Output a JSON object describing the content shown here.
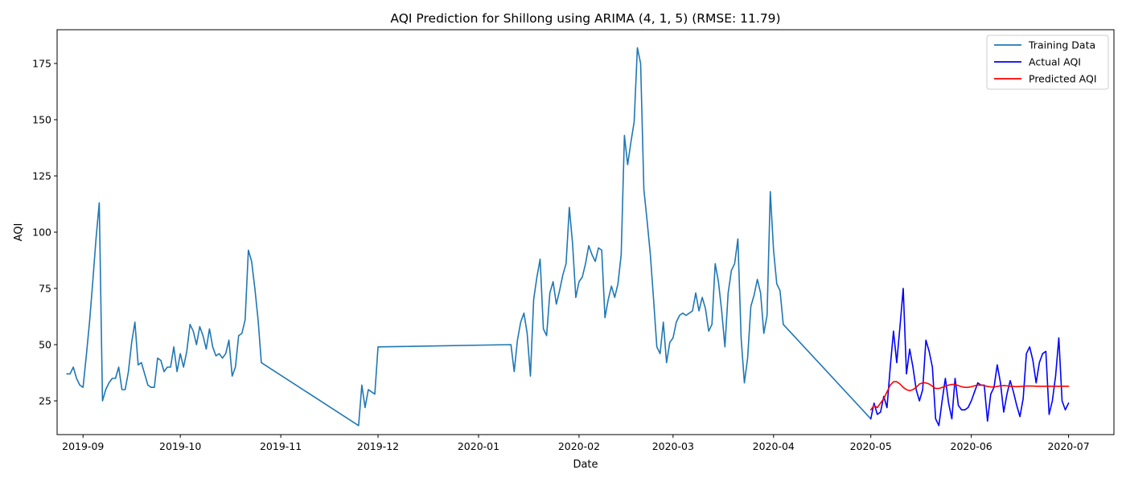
{
  "chart_data": {
    "type": "line",
    "title": "AQI Prediction for Shillong using ARIMA (4, 1, 5) (RMSE: 11.79)",
    "xlabel": "Date",
    "ylabel": "AQI",
    "xlim": [
      "2019-08-24",
      "2020-07-15"
    ],
    "ylim": [
      10,
      190
    ],
    "x_ticks": [
      "2019-09",
      "2019-10",
      "2019-11",
      "2019-12",
      "2020-01",
      "2020-02",
      "2020-03",
      "2020-04",
      "2020-05",
      "2020-06",
      "2020-07"
    ],
    "y_ticks": [
      25,
      50,
      75,
      100,
      125,
      150,
      175
    ],
    "legend_position": "top-right",
    "grid": false,
    "series": [
      {
        "name": "Training Data",
        "color": "#1f77b4",
        "points": [
          [
            "2019-08-27",
            37
          ],
          [
            "2019-08-28",
            37
          ],
          [
            "2019-08-29",
            40
          ],
          [
            "2019-08-30",
            35
          ],
          [
            "2019-08-31",
            32
          ],
          [
            "2019-09-01",
            31
          ],
          [
            "2019-09-02",
            45
          ],
          [
            "2019-09-03",
            60
          ],
          [
            "2019-09-04",
            78
          ],
          [
            "2019-09-05",
            97
          ],
          [
            "2019-09-06",
            113
          ],
          [
            "2019-09-07",
            25
          ],
          [
            "2019-09-08",
            30
          ],
          [
            "2019-09-09",
            33
          ],
          [
            "2019-09-10",
            35
          ],
          [
            "2019-09-11",
            35
          ],
          [
            "2019-09-12",
            40
          ],
          [
            "2019-09-13",
            30
          ],
          [
            "2019-09-14",
            30
          ],
          [
            "2019-09-15",
            38
          ],
          [
            "2019-09-16",
            51
          ],
          [
            "2019-09-17",
            60
          ],
          [
            "2019-09-18",
            41
          ],
          [
            "2019-09-19",
            42
          ],
          [
            "2019-09-20",
            37
          ],
          [
            "2019-09-21",
            32
          ],
          [
            "2019-09-22",
            31
          ],
          [
            "2019-09-23",
            31
          ],
          [
            "2019-09-24",
            44
          ],
          [
            "2019-09-25",
            43
          ],
          [
            "2019-09-26",
            38
          ],
          [
            "2019-09-27",
            40
          ],
          [
            "2019-09-28",
            40
          ],
          [
            "2019-09-29",
            49
          ],
          [
            "2019-09-30",
            38
          ],
          [
            "2019-10-01",
            46
          ],
          [
            "2019-10-02",
            40
          ],
          [
            "2019-10-03",
            47
          ],
          [
            "2019-10-04",
            59
          ],
          [
            "2019-10-05",
            56
          ],
          [
            "2019-10-06",
            50
          ],
          [
            "2019-10-07",
            58
          ],
          [
            "2019-10-08",
            54
          ],
          [
            "2019-10-09",
            48
          ],
          [
            "2019-10-10",
            57
          ],
          [
            "2019-10-11",
            49
          ],
          [
            "2019-10-12",
            45
          ],
          [
            "2019-10-13",
            46
          ],
          [
            "2019-10-14",
            44
          ],
          [
            "2019-10-15",
            46
          ],
          [
            "2019-10-16",
            52
          ],
          [
            "2019-10-17",
            36
          ],
          [
            "2019-10-18",
            40
          ],
          [
            "2019-10-19",
            54
          ],
          [
            "2019-10-20",
            55
          ],
          [
            "2019-10-21",
            61
          ],
          [
            "2019-10-22",
            92
          ],
          [
            "2019-10-23",
            87
          ],
          [
            "2019-10-24",
            75
          ],
          [
            "2019-10-25",
            61
          ],
          [
            "2019-10-26",
            42
          ],
          [
            "2019-11-25",
            14
          ],
          [
            "2019-11-26",
            32
          ],
          [
            "2019-11-27",
            22
          ],
          [
            "2019-11-28",
            30
          ],
          [
            "2019-11-29",
            29
          ],
          [
            "2019-11-30",
            28
          ],
          [
            "2019-12-01",
            49
          ],
          [
            "2020-01-11",
            50
          ],
          [
            "2020-01-12",
            38
          ],
          [
            "2020-01-13",
            52
          ],
          [
            "2020-01-14",
            60
          ],
          [
            "2020-01-15",
            64
          ],
          [
            "2020-01-16",
            55
          ],
          [
            "2020-01-17",
            36
          ],
          [
            "2020-01-18",
            70
          ],
          [
            "2020-01-19",
            80
          ],
          [
            "2020-01-20",
            88
          ],
          [
            "2020-01-21",
            57
          ],
          [
            "2020-01-22",
            54
          ],
          [
            "2020-01-23",
            73
          ],
          [
            "2020-01-24",
            78
          ],
          [
            "2020-01-25",
            68
          ],
          [
            "2020-01-26",
            74
          ],
          [
            "2020-01-27",
            81
          ],
          [
            "2020-01-28",
            86
          ],
          [
            "2020-01-29",
            111
          ],
          [
            "2020-01-30",
            95
          ],
          [
            "2020-01-31",
            71
          ],
          [
            "2020-02-01",
            78
          ],
          [
            "2020-02-02",
            80
          ],
          [
            "2020-02-03",
            86
          ],
          [
            "2020-02-04",
            94
          ],
          [
            "2020-02-05",
            90
          ],
          [
            "2020-02-06",
            87
          ],
          [
            "2020-02-07",
            93
          ],
          [
            "2020-02-08",
            92
          ],
          [
            "2020-02-09",
            62
          ],
          [
            "2020-02-10",
            70
          ],
          [
            "2020-02-11",
            76
          ],
          [
            "2020-02-12",
            71
          ],
          [
            "2020-02-13",
            77
          ],
          [
            "2020-02-14",
            90
          ],
          [
            "2020-02-15",
            143
          ],
          [
            "2020-02-16",
            130
          ],
          [
            "2020-02-17",
            140
          ],
          [
            "2020-02-18",
            149
          ],
          [
            "2020-02-19",
            182
          ],
          [
            "2020-02-20",
            175
          ],
          [
            "2020-02-21",
            119
          ],
          [
            "2020-02-22",
            105
          ],
          [
            "2020-02-23",
            90
          ],
          [
            "2020-02-24",
            70
          ],
          [
            "2020-02-25",
            49
          ],
          [
            "2020-02-26",
            46
          ],
          [
            "2020-02-27",
            60
          ],
          [
            "2020-02-28",
            42
          ],
          [
            "2020-02-29",
            51
          ],
          [
            "2020-03-01",
            53
          ],
          [
            "2020-03-02",
            60
          ],
          [
            "2020-03-03",
            63
          ],
          [
            "2020-03-04",
            64
          ],
          [
            "2020-03-05",
            63
          ],
          [
            "2020-03-06",
            64
          ],
          [
            "2020-03-07",
            65
          ],
          [
            "2020-03-08",
            73
          ],
          [
            "2020-03-09",
            65
          ],
          [
            "2020-03-10",
            71
          ],
          [
            "2020-03-11",
            66
          ],
          [
            "2020-03-12",
            56
          ],
          [
            "2020-03-13",
            59
          ],
          [
            "2020-03-14",
            86
          ],
          [
            "2020-03-15",
            78
          ],
          [
            "2020-03-16",
            65
          ],
          [
            "2020-03-17",
            49
          ],
          [
            "2020-03-18",
            73
          ],
          [
            "2020-03-19",
            83
          ],
          [
            "2020-03-20",
            86
          ],
          [
            "2020-03-21",
            97
          ],
          [
            "2020-03-22",
            53
          ],
          [
            "2020-03-23",
            33
          ],
          [
            "2020-03-24",
            44
          ],
          [
            "2020-03-25",
            67
          ],
          [
            "2020-03-26",
            72
          ],
          [
            "2020-03-27",
            79
          ],
          [
            "2020-03-28",
            73
          ],
          [
            "2020-03-29",
            55
          ],
          [
            "2020-03-30",
            63
          ],
          [
            "2020-03-31",
            118
          ],
          [
            "2020-04-01",
            92
          ],
          [
            "2020-04-02",
            77
          ],
          [
            "2020-04-03",
            74
          ],
          [
            "2020-04-04",
            59
          ],
          [
            "2020-05-01",
            17
          ]
        ]
      },
      {
        "name": "Actual AQI",
        "color": "#0000ff",
        "points": [
          [
            "2020-05-01",
            17
          ],
          [
            "2020-05-02",
            24
          ],
          [
            "2020-05-03",
            19
          ],
          [
            "2020-05-04",
            20
          ],
          [
            "2020-05-05",
            27
          ],
          [
            "2020-05-06",
            22
          ],
          [
            "2020-05-07",
            40
          ],
          [
            "2020-05-08",
            56
          ],
          [
            "2020-05-09",
            42
          ],
          [
            "2020-05-10",
            58
          ],
          [
            "2020-05-11",
            75
          ],
          [
            "2020-05-12",
            37
          ],
          [
            "2020-05-13",
            48
          ],
          [
            "2020-05-14",
            40
          ],
          [
            "2020-05-15",
            30
          ],
          [
            "2020-05-16",
            25
          ],
          [
            "2020-05-17",
            30
          ],
          [
            "2020-05-18",
            52
          ],
          [
            "2020-05-19",
            47
          ],
          [
            "2020-05-20",
            40
          ],
          [
            "2020-05-21",
            17
          ],
          [
            "2020-05-22",
            14
          ],
          [
            "2020-05-23",
            25
          ],
          [
            "2020-05-24",
            35
          ],
          [
            "2020-05-25",
            24
          ],
          [
            "2020-05-26",
            17
          ],
          [
            "2020-05-27",
            35
          ],
          [
            "2020-05-28",
            23
          ],
          [
            "2020-05-29",
            21
          ],
          [
            "2020-05-30",
            21
          ],
          [
            "2020-05-31",
            22
          ],
          [
            "2020-06-01",
            25
          ],
          [
            "2020-06-02",
            29
          ],
          [
            "2020-06-03",
            33
          ],
          [
            "2020-06-04",
            32
          ],
          [
            "2020-06-05",
            32
          ],
          [
            "2020-06-06",
            16
          ],
          [
            "2020-06-07",
            28
          ],
          [
            "2020-06-08",
            31
          ],
          [
            "2020-06-09",
            41
          ],
          [
            "2020-06-10",
            33
          ],
          [
            "2020-06-11",
            20
          ],
          [
            "2020-06-12",
            28
          ],
          [
            "2020-06-13",
            34
          ],
          [
            "2020-06-14",
            29
          ],
          [
            "2020-06-15",
            23
          ],
          [
            "2020-06-16",
            18
          ],
          [
            "2020-06-17",
            26
          ],
          [
            "2020-06-18",
            46
          ],
          [
            "2020-06-19",
            49
          ],
          [
            "2020-06-20",
            43
          ],
          [
            "2020-06-21",
            33
          ],
          [
            "2020-06-22",
            42
          ],
          [
            "2020-06-23",
            46
          ],
          [
            "2020-06-24",
            47
          ],
          [
            "2020-06-25",
            19
          ],
          [
            "2020-06-26",
            25
          ],
          [
            "2020-06-27",
            36
          ],
          [
            "2020-06-28",
            53
          ],
          [
            "2020-06-29",
            25
          ],
          [
            "2020-06-30",
            21
          ],
          [
            "2020-07-01",
            24
          ]
        ]
      },
      {
        "name": "Predicted AQI",
        "color": "#ff0000",
        "points": [
          [
            "2020-05-01",
            21
          ],
          [
            "2020-05-02",
            23
          ],
          [
            "2020-05-03",
            22
          ],
          [
            "2020-05-04",
            24
          ],
          [
            "2020-05-05",
            26
          ],
          [
            "2020-05-06",
            29
          ],
          [
            "2020-05-07",
            32
          ],
          [
            "2020-05-08",
            33.5
          ],
          [
            "2020-05-09",
            33.5
          ],
          [
            "2020-05-10",
            32.5
          ],
          [
            "2020-05-11",
            31
          ],
          [
            "2020-05-12",
            30
          ],
          [
            "2020-05-13",
            29.5
          ],
          [
            "2020-05-14",
            30
          ],
          [
            "2020-05-15",
            31
          ],
          [
            "2020-05-16",
            32.5
          ],
          [
            "2020-05-17",
            33
          ],
          [
            "2020-05-18",
            33
          ],
          [
            "2020-05-19",
            32.5
          ],
          [
            "2020-05-20",
            31.5
          ],
          [
            "2020-05-21",
            30.5
          ],
          [
            "2020-05-22",
            30.5
          ],
          [
            "2020-05-23",
            31
          ],
          [
            "2020-05-24",
            31.5
          ],
          [
            "2020-05-25",
            32
          ],
          [
            "2020-05-26",
            32.3
          ],
          [
            "2020-05-27",
            32.3
          ],
          [
            "2020-05-28",
            31.8
          ],
          [
            "2020-05-29",
            31.3
          ],
          [
            "2020-05-30",
            31
          ],
          [
            "2020-05-31",
            31
          ],
          [
            "2020-06-01",
            31.3
          ],
          [
            "2020-06-02",
            31.7
          ],
          [
            "2020-06-03",
            32
          ],
          [
            "2020-06-04",
            32
          ],
          [
            "2020-06-05",
            31.8
          ],
          [
            "2020-06-06",
            31.4
          ],
          [
            "2020-06-07",
            31.2
          ],
          [
            "2020-06-08",
            31.2
          ],
          [
            "2020-06-09",
            31.4
          ],
          [
            "2020-06-10",
            31.7
          ],
          [
            "2020-06-11",
            31.8
          ],
          [
            "2020-06-12",
            31.7
          ],
          [
            "2020-06-13",
            31.5
          ],
          [
            "2020-06-14",
            31.4
          ],
          [
            "2020-06-15",
            31.3
          ],
          [
            "2020-06-16",
            31.4
          ],
          [
            "2020-06-17",
            31.5
          ],
          [
            "2020-06-18",
            31.6
          ],
          [
            "2020-06-19",
            31.6
          ],
          [
            "2020-06-20",
            31.6
          ],
          [
            "2020-06-21",
            31.5
          ],
          [
            "2020-06-22",
            31.5
          ],
          [
            "2020-06-23",
            31.5
          ],
          [
            "2020-06-24",
            31.5
          ],
          [
            "2020-06-25",
            31.5
          ],
          [
            "2020-06-26",
            31.5
          ],
          [
            "2020-06-27",
            31.5
          ],
          [
            "2020-06-28",
            31.5
          ],
          [
            "2020-06-29",
            31.5
          ],
          [
            "2020-06-30",
            31.5
          ],
          [
            "2020-07-01",
            31.5
          ]
        ]
      }
    ]
  }
}
